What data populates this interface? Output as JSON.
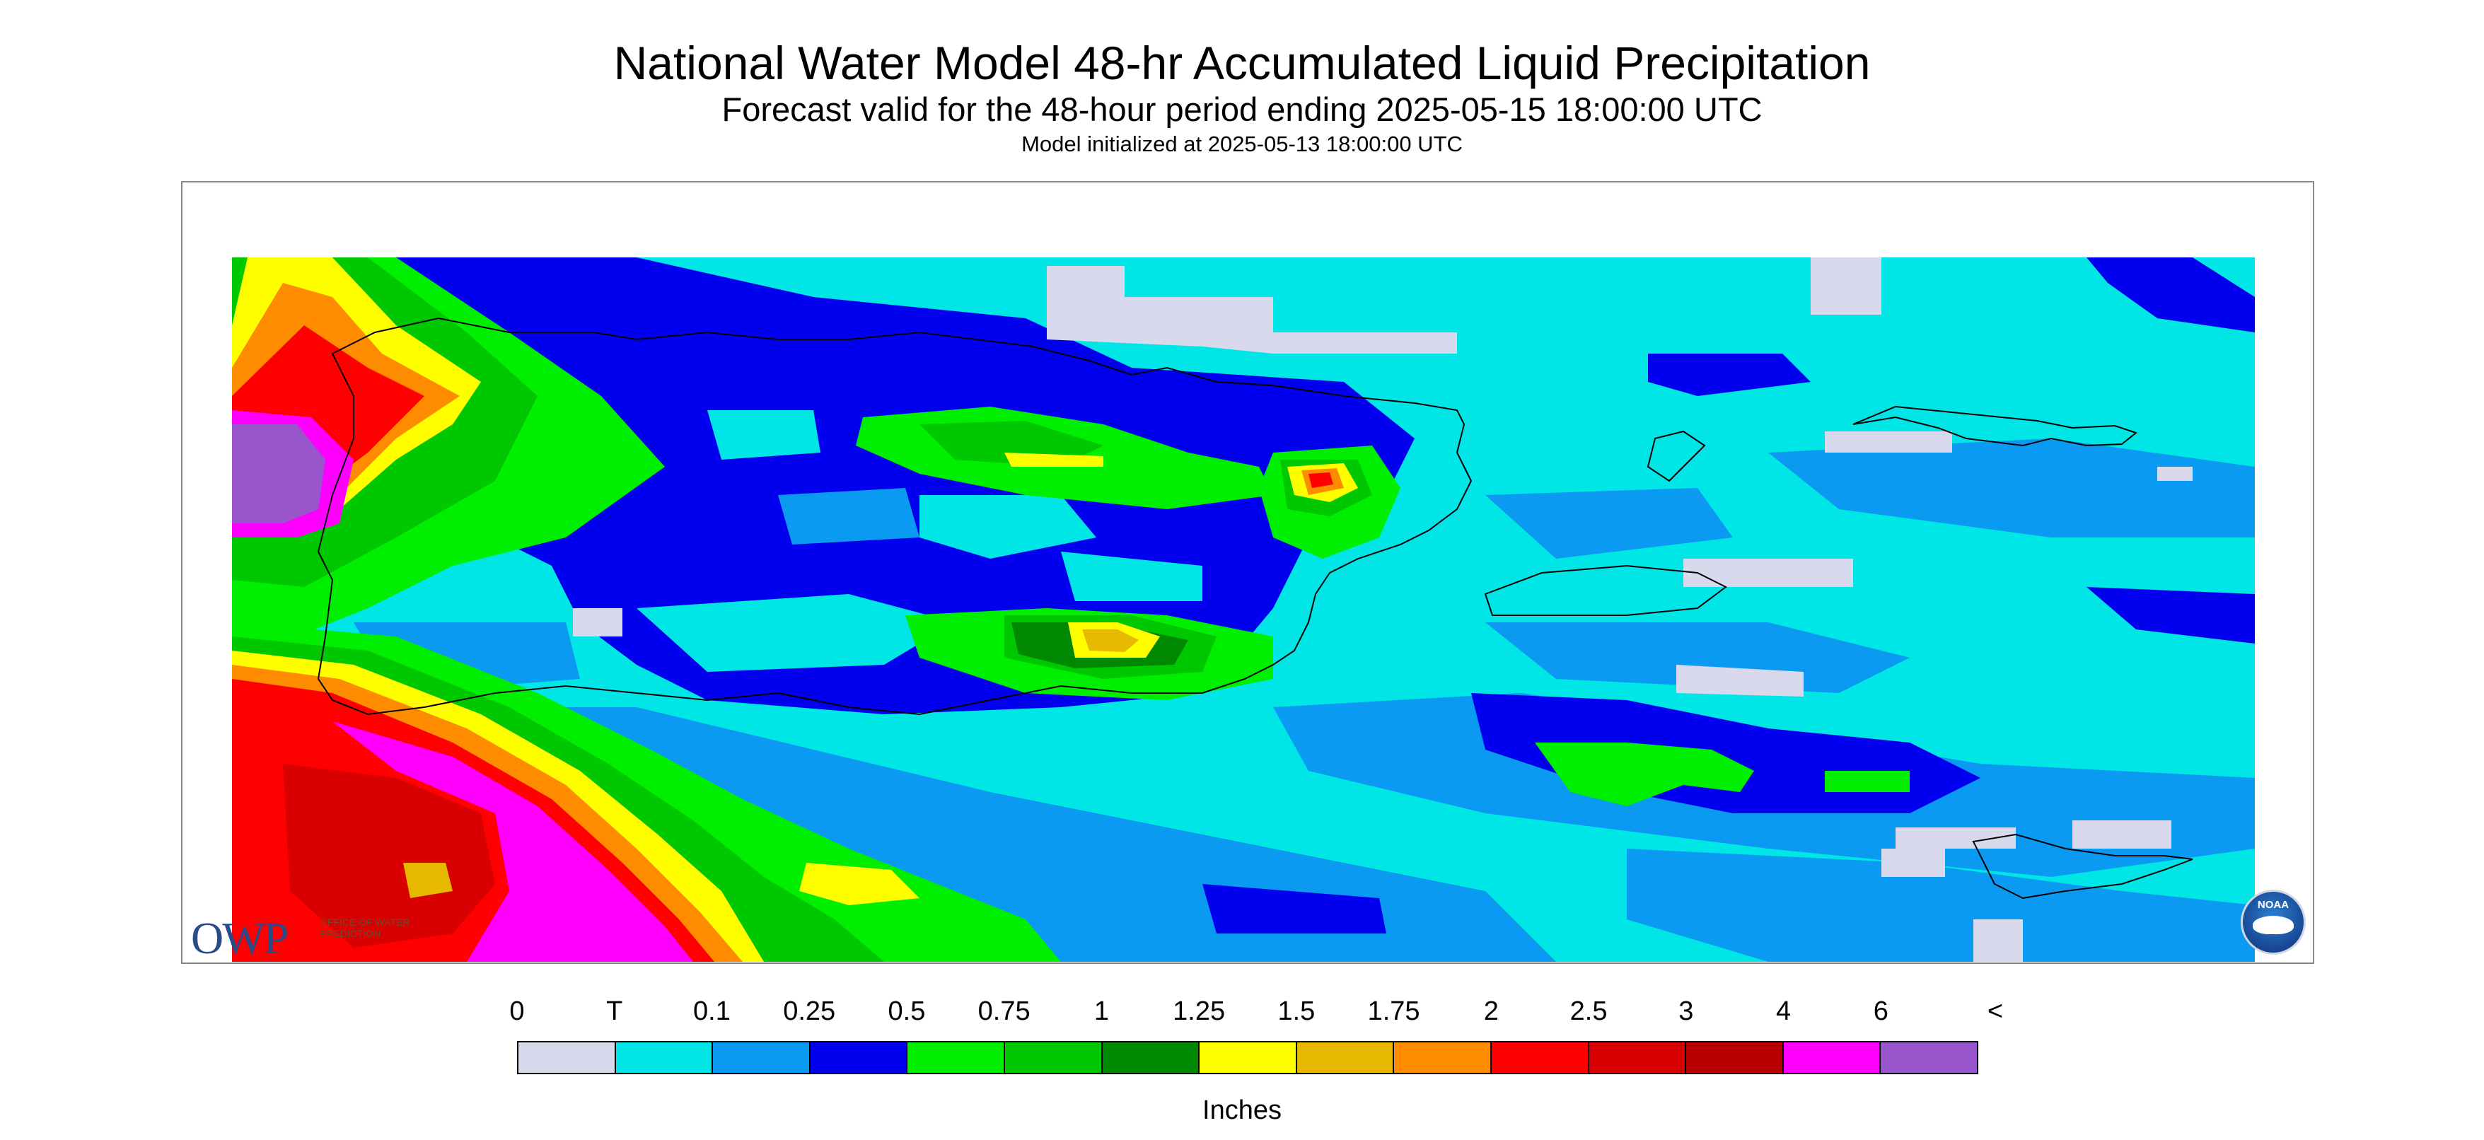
{
  "header": {
    "title": "National Water Model 48-hr Accumulated Liquid Precipitation",
    "subtitle": "Forecast valid for the 48-hour period ending 2025-05-15 18:00:00 UTC",
    "init_line": "Model initialized at 2025-05-13 18:00:00 UTC"
  },
  "logos": {
    "owp_text": "OWP",
    "owp_small": "OFFICE OF WATER PREDICTION",
    "noaa_text": "NOAA"
  },
  "legend": {
    "labels": [
      "0",
      "T",
      "0.1",
      "0.25",
      "0.5",
      "0.75",
      "1",
      "1.25",
      "1.5",
      "1.75",
      "2",
      "2.5",
      "3",
      "4",
      "6",
      "<"
    ],
    "colors": [
      "#d9d9ee",
      "#00e5e5",
      "#0a9af2",
      "#0000ee",
      "#00ee00",
      "#00c800",
      "#008800",
      "#ffff00",
      "#e6b800",
      "#ff8c00",
      "#ff0000",
      "#d80000",
      "#b80000",
      "#ff00ff",
      "#9955cc"
    ],
    "units": "Inches"
  }
}
